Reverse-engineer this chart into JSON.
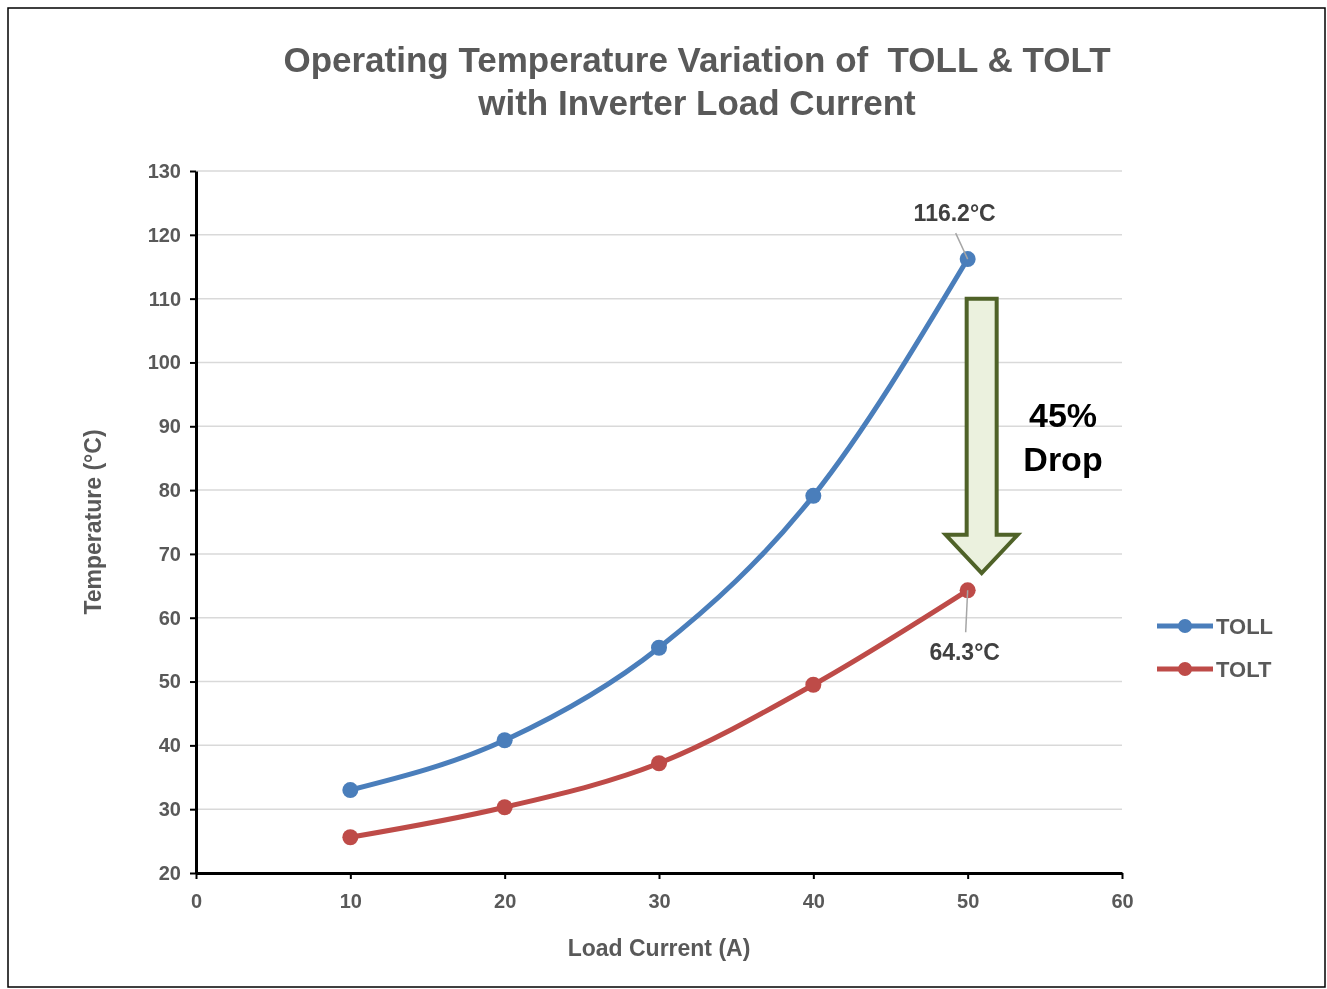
{
  "chart_data": {
    "type": "line",
    "title": "Operating Temperature Variation of  TOLL & TOLT\nwith Inverter Load Current",
    "xlabel": "Load Current (A)",
    "ylabel": "Temperature (°C)",
    "x": [
      10,
      20,
      30,
      40,
      50
    ],
    "series": [
      {
        "name": "TOLL",
        "color": "#4a7ebb",
        "values": [
          33.0,
          40.8,
          55.3,
          79.1,
          116.2
        ]
      },
      {
        "name": "TOLT",
        "color": "#be4b48",
        "values": [
          25.6,
          30.3,
          37.2,
          49.5,
          64.3
        ]
      }
    ],
    "xlim": [
      0,
      60
    ],
    "xticks": [
      0,
      10,
      20,
      30,
      40,
      50,
      60
    ],
    "ylim": [
      20,
      130
    ],
    "yticks": [
      20,
      30,
      40,
      50,
      60,
      70,
      80,
      90,
      100,
      110,
      120,
      130
    ],
    "grid": "y",
    "legend": "right",
    "marker": "circle",
    "line_style": "solid",
    "annotations": [
      {
        "text": "116.2°C",
        "x": 50,
        "y": 116.2
      },
      {
        "text": "64.3°C",
        "x": 50,
        "y": 64.3
      },
      "45%\nDrop"
    ]
  }
}
